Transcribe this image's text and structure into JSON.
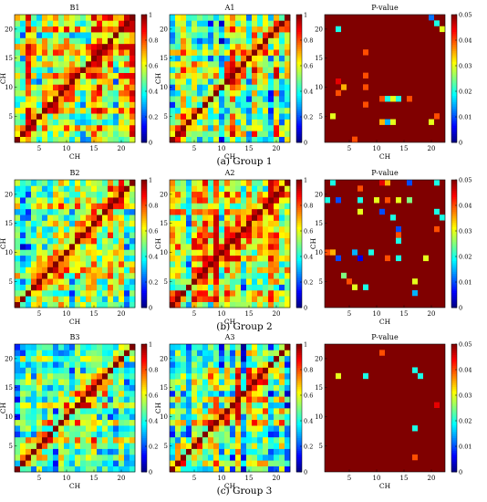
{
  "chart_data": [
    {
      "type": "heatmap",
      "title": "B1",
      "xlabel": "CH",
      "ylabel": "CH",
      "n_channels": 22,
      "xticks": [
        "5",
        "10",
        "15",
        "20"
      ],
      "yticks": [
        "5",
        "10",
        "15",
        "20"
      ],
      "colorbar": {
        "min": 0,
        "max": 1,
        "ticks": [
          "0",
          "0.2",
          "0.4",
          "0.6",
          "0.8",
          "1"
        ],
        "colormap": "jet"
      },
      "diagonal": 1,
      "mean_offdiag_correlation": 0.62,
      "seed": 11
    },
    {
      "type": "heatmap",
      "title": "A1",
      "xlabel": "CH",
      "ylabel": "CH",
      "n_channels": 22,
      "xticks": [
        "5",
        "10",
        "15",
        "20"
      ],
      "yticks": [
        "5",
        "10",
        "15",
        "20"
      ],
      "colorbar": {
        "min": 0,
        "max": 1,
        "ticks": [
          "0",
          "0.2",
          "0.4",
          "0.6",
          "0.8",
          "1"
        ],
        "colormap": "jet"
      },
      "diagonal": 1,
      "mean_offdiag_correlation": 0.55,
      "seed": 23
    },
    {
      "type": "heatmap",
      "title": "P-value",
      "xlabel": "CH",
      "ylabel": "",
      "n_channels": 22,
      "xticks": [
        "5",
        "10",
        "15",
        "20"
      ],
      "yticks": [
        "5",
        "10",
        "15",
        "20"
      ],
      "colorbar": {
        "min": 0,
        "max": 0.05,
        "ticks": [
          "0",
          "0.01",
          "0.02",
          "0.03",
          "0.04",
          "0.05"
        ],
        "colormap": "jet"
      },
      "background_value": 0.05,
      "cells": [
        {
          "x": 20,
          "y": 22,
          "p": 0.012
        },
        {
          "x": 21,
          "y": 21,
          "p": 0.02
        },
        {
          "x": 22,
          "y": 20,
          "p": 0.03
        },
        {
          "x": 3,
          "y": 20,
          "p": 0.02
        },
        {
          "x": 8,
          "y": 16,
          "p": 0.04
        },
        {
          "x": 8,
          "y": 12,
          "p": 0.04
        },
        {
          "x": 3,
          "y": 11,
          "p": 0.045
        },
        {
          "x": 4,
          "y": 10,
          "p": 0.035
        },
        {
          "x": 3,
          "y": 9,
          "p": 0.04
        },
        {
          "x": 8,
          "y": 10,
          "p": 0.04
        },
        {
          "x": 11,
          "y": 8,
          "p": 0.04
        },
        {
          "x": 12,
          "y": 8,
          "p": 0.02
        },
        {
          "x": 13,
          "y": 8,
          "p": 0.03
        },
        {
          "x": 14,
          "y": 8,
          "p": 0.02
        },
        {
          "x": 16,
          "y": 8,
          "p": 0.04
        },
        {
          "x": 8,
          "y": 7,
          "p": 0.04
        },
        {
          "x": 2,
          "y": 5,
          "p": 0.03
        },
        {
          "x": 11,
          "y": 4,
          "p": 0.035
        },
        {
          "x": 12,
          "y": 4,
          "p": 0.015
        },
        {
          "x": 13,
          "y": 4,
          "p": 0.03
        },
        {
          "x": 21,
          "y": 5,
          "p": 0.04
        },
        {
          "x": 20,
          "y": 4,
          "p": 0.03
        },
        {
          "x": 6,
          "y": 1,
          "p": 0.04
        }
      ]
    },
    {
      "type": "heatmap",
      "title": "B2",
      "xlabel": "CH",
      "ylabel": "CH",
      "n_channels": 22,
      "xticks": [
        "5",
        "10",
        "15",
        "20"
      ],
      "yticks": [
        "5",
        "10",
        "15",
        "20"
      ],
      "colorbar": {
        "min": 0,
        "max": 1,
        "ticks": [
          "0",
          "0.2",
          "0.4",
          "0.6",
          "0.8",
          "1"
        ],
        "colormap": "jet"
      },
      "diagonal": 1,
      "mean_offdiag_correlation": 0.6,
      "seed": 37
    },
    {
      "type": "heatmap",
      "title": "A2",
      "xlabel": "CH",
      "ylabel": "CH",
      "n_channels": 22,
      "xticks": [
        "5",
        "10",
        "15",
        "20"
      ],
      "yticks": [
        "5",
        "10",
        "15",
        "20"
      ],
      "colorbar": {
        "min": 0,
        "max": 1,
        "ticks": [
          "0",
          "0.2",
          "0.4",
          "0.6",
          "0.8",
          "1"
        ],
        "colormap": "jet"
      },
      "diagonal": 1,
      "mean_offdiag_correlation": 0.55,
      "seed": 41
    },
    {
      "type": "heatmap",
      "title": "P-value",
      "xlabel": "CH",
      "ylabel": "CH",
      "n_channels": 22,
      "xticks": [
        "5",
        "10",
        "15",
        "20"
      ],
      "yticks": [
        "5",
        "10",
        "15",
        "20"
      ],
      "colorbar": {
        "min": 0,
        "max": 0.05,
        "ticks": [
          "0",
          "0.01",
          "0.02",
          "0.03",
          "0.04",
          "0.05"
        ],
        "colormap": "jet"
      },
      "background_value": 0.05,
      "cells": [
        {
          "x": 2,
          "y": 22,
          "p": 0.02
        },
        {
          "x": 7,
          "y": 21,
          "p": 0.04
        },
        {
          "x": 11,
          "y": 22,
          "p": 0.045
        },
        {
          "x": 12,
          "y": 22,
          "p": 0.035
        },
        {
          "x": 16,
          "y": 22,
          "p": 0.01
        },
        {
          "x": 21,
          "y": 22,
          "p": 0.02
        },
        {
          "x": 1,
          "y": 19,
          "p": 0.02
        },
        {
          "x": 3,
          "y": 19,
          "p": 0.01
        },
        {
          "x": 7,
          "y": 19,
          "p": 0.02
        },
        {
          "x": 10,
          "y": 19,
          "p": 0.03
        },
        {
          "x": 12,
          "y": 19,
          "p": 0.04
        },
        {
          "x": 14,
          "y": 19,
          "p": 0.03
        },
        {
          "x": 16,
          "y": 19,
          "p": 0.025
        },
        {
          "x": 7,
          "y": 17,
          "p": 0.03
        },
        {
          "x": 11,
          "y": 17,
          "p": 0.01
        },
        {
          "x": 21,
          "y": 17,
          "p": 0.02
        },
        {
          "x": 22,
          "y": 16,
          "p": 0.02
        },
        {
          "x": 13,
          "y": 16,
          "p": 0.02
        },
        {
          "x": 14,
          "y": 14,
          "p": 0.01
        },
        {
          "x": 14,
          "y": 13,
          "p": 0.04
        },
        {
          "x": 21,
          "y": 14,
          "p": 0.04
        },
        {
          "x": 14,
          "y": 12,
          "p": 0.02
        },
        {
          "x": 1,
          "y": 10,
          "p": 0.04
        },
        {
          "x": 2,
          "y": 10,
          "p": 0.035
        },
        {
          "x": 6,
          "y": 10,
          "p": 0.015
        },
        {
          "x": 9,
          "y": 10,
          "p": 0.02
        },
        {
          "x": 3,
          "y": 9,
          "p": 0.01
        },
        {
          "x": 7,
          "y": 9,
          "p": 0.005
        },
        {
          "x": 12,
          "y": 9,
          "p": 0.04
        },
        {
          "x": 14,
          "y": 9,
          "p": 0.02
        },
        {
          "x": 19,
          "y": 9,
          "p": 0.03
        },
        {
          "x": 4,
          "y": 6,
          "p": 0.025
        },
        {
          "x": 5,
          "y": 5,
          "p": 0.04
        },
        {
          "x": 6,
          "y": 4,
          "p": 0.03
        },
        {
          "x": 8,
          "y": 4,
          "p": 0.02
        },
        {
          "x": 17,
          "y": 5,
          "p": 0.03
        },
        {
          "x": 17,
          "y": 3,
          "p": 0.015
        }
      ]
    },
    {
      "type": "heatmap",
      "title": "B3",
      "xlabel": "CH",
      "ylabel": "CH",
      "n_channels": 22,
      "xticks": [
        "5",
        "10",
        "15",
        "20"
      ],
      "yticks": [
        "5",
        "10",
        "15",
        "20"
      ],
      "colorbar": {
        "min": 0,
        "max": 1,
        "ticks": [
          "0",
          "0.2",
          "0.4",
          "0.6",
          "0.8",
          "1"
        ],
        "colormap": "jet"
      },
      "diagonal": 1,
      "mean_offdiag_correlation": 0.55,
      "seed": 53
    },
    {
      "type": "heatmap",
      "title": "A3",
      "xlabel": "CH",
      "ylabel": "CH",
      "n_channels": 22,
      "xticks": [
        "5",
        "10",
        "15",
        "20"
      ],
      "yticks": [
        "5",
        "10",
        "15",
        "20"
      ],
      "colorbar": {
        "min": 0,
        "max": 1,
        "ticks": [
          "0",
          "0.2",
          "0.4",
          "0.6",
          "0.8",
          "1"
        ],
        "colormap": "jet"
      },
      "diagonal": 1,
      "mean_offdiag_correlation": 0.55,
      "seed": 67
    },
    {
      "type": "heatmap",
      "title": "P-value",
      "xlabel": "CH",
      "ylabel": "",
      "n_channels": 22,
      "xticks": [
        "5",
        "10",
        "15",
        "20"
      ],
      "yticks": [
        "5",
        "10",
        "15",
        "20"
      ],
      "colorbar": {
        "min": 0,
        "max": 0.05,
        "ticks": [
          "0",
          "0.01",
          "0.02",
          "0.03",
          "0.04",
          "0.05"
        ],
        "colormap": "jet"
      },
      "background_value": 0.05,
      "cells": [
        {
          "x": 11,
          "y": 21,
          "p": 0.04
        },
        {
          "x": 3,
          "y": 17,
          "p": 0.03
        },
        {
          "x": 8,
          "y": 17,
          "p": 0.02
        },
        {
          "x": 17,
          "y": 18,
          "p": 0.02
        },
        {
          "x": 18,
          "y": 17,
          "p": 0.02
        },
        {
          "x": 21,
          "y": 12,
          "p": 0.045
        },
        {
          "x": 17,
          "y": 8,
          "p": 0.02
        },
        {
          "x": 17,
          "y": 3,
          "p": 0.04
        }
      ]
    }
  ],
  "captions": [
    "(a) Group 1",
    "(b) Group 2",
    "(c) Group 3"
  ]
}
